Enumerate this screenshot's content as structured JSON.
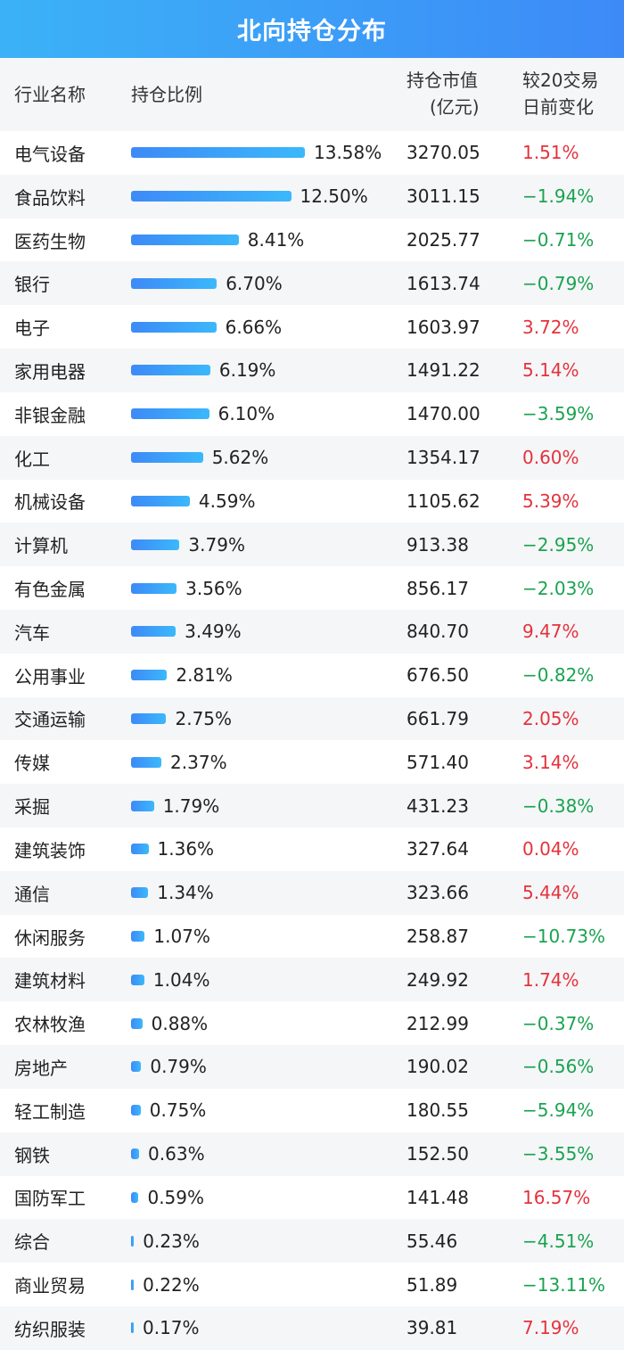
{
  "title": "北向持仓分布",
  "headers": {
    "name": "行业名称",
    "ratio": "持仓比例",
    "value_l1": "持仓市值",
    "value_l2": "(亿元)",
    "change_l1": "较20交易",
    "change_l2": "日前变化"
  },
  "colors": {
    "up": "#e5323c",
    "down": "#1aa350",
    "bar": "#3d8af7",
    "header": "#3d9af7"
  },
  "chart_data": {
    "type": "table",
    "rows": [
      [
        "电气设备",
        "13.58%",
        "3270.05",
        "1.51%"
      ],
      [
        "食品饮料",
        "12.50%",
        "3011.15",
        "-1.94%"
      ],
      [
        "医药生物",
        "8.41%",
        "2025.77",
        "-0.71%"
      ],
      [
        "银行",
        "6.70%",
        "1613.74",
        "-0.79%"
      ],
      [
        "电子",
        "6.66%",
        "1603.97",
        "3.72%"
      ],
      [
        "家用电器",
        "6.19%",
        "1491.22",
        "5.14%"
      ],
      [
        "非银金融",
        "6.10%",
        "1470.00",
        "-3.59%"
      ],
      [
        "化工",
        "5.62%",
        "1354.17",
        "0.60%"
      ],
      [
        "机械设备",
        "4.59%",
        "1105.62",
        "5.39%"
      ],
      [
        "计算机",
        "3.79%",
        "913.38",
        "-2.95%"
      ],
      [
        "有色金属",
        "3.56%",
        "856.17",
        "-2.03%"
      ],
      [
        "汽车",
        "3.49%",
        "840.70",
        "9.47%"
      ],
      [
        "公用事业",
        "2.81%",
        "676.50",
        "-0.82%"
      ],
      [
        "交通运输",
        "2.75%",
        "661.79",
        "2.05%"
      ],
      [
        "传媒",
        "2.37%",
        "571.40",
        "3.14%"
      ],
      [
        "采掘",
        "1.79%",
        "431.23",
        "-0.38%"
      ],
      [
        "建筑装饰",
        "1.36%",
        "327.64",
        "0.04%"
      ],
      [
        "通信",
        "1.34%",
        "323.66",
        "5.44%"
      ],
      [
        "休闲服务",
        "1.07%",
        "258.87",
        "-10.73%"
      ],
      [
        "建筑材料",
        "1.04%",
        "249.92",
        "1.74%"
      ],
      [
        "农林牧渔",
        "0.88%",
        "212.99",
        "-0.37%"
      ],
      [
        "房地产",
        "0.79%",
        "190.02",
        "-0.56%"
      ],
      [
        "轻工制造",
        "0.75%",
        "180.55",
        "-5.94%"
      ],
      [
        "钢铁",
        "0.63%",
        "152.50",
        "-3.55%"
      ],
      [
        "国防军工",
        "0.59%",
        "141.48",
        "16.57%"
      ],
      [
        "综合",
        "0.23%",
        "55.46",
        "-4.51%"
      ],
      [
        "商业贸易",
        "0.22%",
        "51.89",
        "-13.11%"
      ],
      [
        "纺织服装",
        "0.17%",
        "39.81",
        "7.19%"
      ]
    ]
  }
}
